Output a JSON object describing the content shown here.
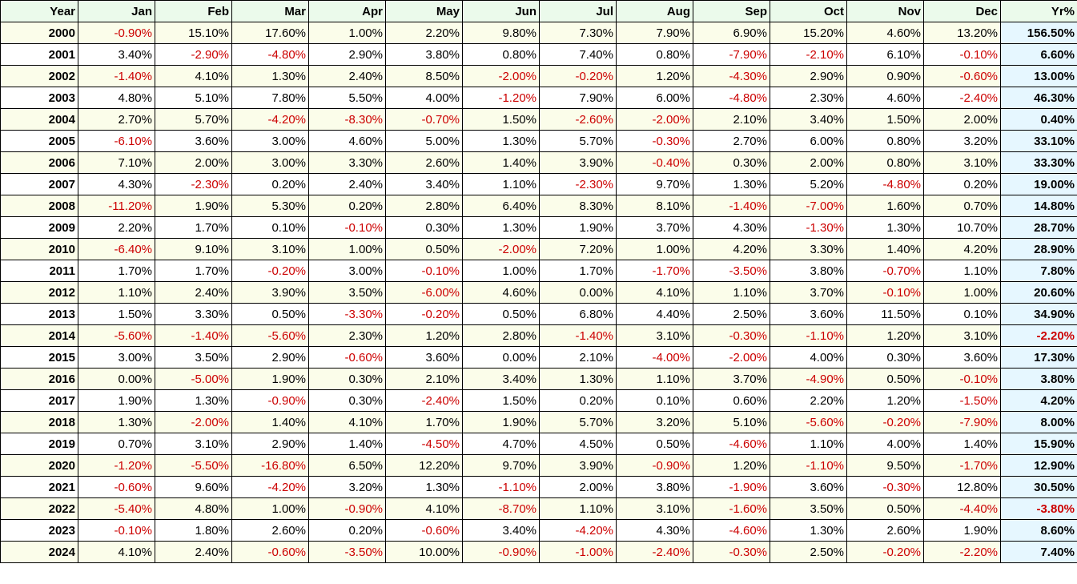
{
  "table": {
    "columns": [
      "Year",
      "Jan",
      "Feb",
      "Mar",
      "Apr",
      "May",
      "Jun",
      "Jul",
      "Aug",
      "Sep",
      "Oct",
      "Nov",
      "Dec",
      "Yr%"
    ],
    "rows": [
      {
        "year": "2000",
        "months": [
          "-0.90%",
          "15.10%",
          "17.60%",
          "1.00%",
          "2.20%",
          "9.80%",
          "7.30%",
          "7.90%",
          "6.90%",
          "15.20%",
          "4.60%",
          "13.20%"
        ],
        "yr": "156.50%"
      },
      {
        "year": "2001",
        "months": [
          "3.40%",
          "-2.90%",
          "-4.80%",
          "2.90%",
          "3.80%",
          "0.80%",
          "7.40%",
          "0.80%",
          "-7.90%",
          "-2.10%",
          "6.10%",
          "-0.10%"
        ],
        "yr": "6.60%"
      },
      {
        "year": "2002",
        "months": [
          "-1.40%",
          "4.10%",
          "1.30%",
          "2.40%",
          "8.50%",
          "-2.00%",
          "-0.20%",
          "1.20%",
          "-4.30%",
          "2.90%",
          "0.90%",
          "-0.60%"
        ],
        "yr": "13.00%"
      },
      {
        "year": "2003",
        "months": [
          "4.80%",
          "5.10%",
          "7.80%",
          "5.50%",
          "4.00%",
          "-1.20%",
          "7.90%",
          "6.00%",
          "-4.80%",
          "2.30%",
          "4.60%",
          "-2.40%"
        ],
        "yr": "46.30%"
      },
      {
        "year": "2004",
        "months": [
          "2.70%",
          "5.70%",
          "-4.20%",
          "-8.30%",
          "-0.70%",
          "1.50%",
          "-2.60%",
          "-2.00%",
          "2.10%",
          "3.40%",
          "1.50%",
          "2.00%"
        ],
        "yr": "0.40%"
      },
      {
        "year": "2005",
        "months": [
          "-6.10%",
          "3.60%",
          "3.00%",
          "4.60%",
          "5.00%",
          "1.30%",
          "5.70%",
          "-0.30%",
          "2.70%",
          "6.00%",
          "0.80%",
          "3.20%"
        ],
        "yr": "33.10%"
      },
      {
        "year": "2006",
        "months": [
          "7.10%",
          "2.00%",
          "3.00%",
          "3.30%",
          "2.60%",
          "1.40%",
          "3.90%",
          "-0.40%",
          "0.30%",
          "2.00%",
          "0.80%",
          "3.10%"
        ],
        "yr": "33.30%"
      },
      {
        "year": "2007",
        "months": [
          "4.30%",
          "-2.30%",
          "0.20%",
          "2.40%",
          "3.40%",
          "1.10%",
          "-2.30%",
          "9.70%",
          "1.30%",
          "5.20%",
          "-4.80%",
          "0.20%"
        ],
        "yr": "19.00%"
      },
      {
        "year": "2008",
        "months": [
          "-11.20%",
          "1.90%",
          "5.30%",
          "0.20%",
          "2.80%",
          "6.40%",
          "8.30%",
          "8.10%",
          "-1.40%",
          "-7.00%",
          "1.60%",
          "0.70%"
        ],
        "yr": "14.80%"
      },
      {
        "year": "2009",
        "months": [
          "2.20%",
          "1.70%",
          "0.10%",
          "-0.10%",
          "0.30%",
          "1.30%",
          "1.90%",
          "3.70%",
          "4.30%",
          "-1.30%",
          "1.30%",
          "10.70%"
        ],
        "yr": "28.70%"
      },
      {
        "year": "2010",
        "months": [
          "-6.40%",
          "9.10%",
          "3.10%",
          "1.00%",
          "0.50%",
          "-2.00%",
          "7.20%",
          "1.00%",
          "4.20%",
          "3.30%",
          "1.40%",
          "4.20%"
        ],
        "yr": "28.90%"
      },
      {
        "year": "2011",
        "months": [
          "1.70%",
          "1.70%",
          "-0.20%",
          "3.00%",
          "-0.10%",
          "1.00%",
          "1.70%",
          "-1.70%",
          "-3.50%",
          "3.80%",
          "-0.70%",
          "1.10%"
        ],
        "yr": "7.80%"
      },
      {
        "year": "2012",
        "months": [
          "1.10%",
          "2.40%",
          "3.90%",
          "3.50%",
          "-6.00%",
          "4.60%",
          "0.00%",
          "4.10%",
          "1.10%",
          "3.70%",
          "-0.10%",
          "1.00%"
        ],
        "yr": "20.60%"
      },
      {
        "year": "2013",
        "months": [
          "1.50%",
          "3.30%",
          "0.50%",
          "-3.30%",
          "-0.20%",
          "0.50%",
          "6.80%",
          "4.40%",
          "2.50%",
          "3.60%",
          "11.50%",
          "0.10%"
        ],
        "yr": "34.90%"
      },
      {
        "year": "2014",
        "months": [
          "-5.60%",
          "-1.40%",
          "-5.60%",
          "2.30%",
          "1.20%",
          "2.80%",
          "-1.40%",
          "3.10%",
          "-0.30%",
          "-1.10%",
          "1.20%",
          "3.10%"
        ],
        "yr": "-2.20%"
      },
      {
        "year": "2015",
        "months": [
          "3.00%",
          "3.50%",
          "2.90%",
          "-0.60%",
          "3.60%",
          "0.00%",
          "2.10%",
          "-4.00%",
          "-2.00%",
          "4.00%",
          "0.30%",
          "3.60%"
        ],
        "yr": "17.30%"
      },
      {
        "year": "2016",
        "months": [
          "0.00%",
          "-5.00%",
          "1.90%",
          "0.30%",
          "2.10%",
          "3.40%",
          "1.30%",
          "1.10%",
          "3.70%",
          "-4.90%",
          "0.50%",
          "-0.10%"
        ],
        "yr": "3.80%"
      },
      {
        "year": "2017",
        "months": [
          "1.90%",
          "1.30%",
          "-0.90%",
          "0.30%",
          "-2.40%",
          "1.50%",
          "0.20%",
          "0.10%",
          "0.60%",
          "2.20%",
          "1.20%",
          "-1.50%"
        ],
        "yr": "4.20%"
      },
      {
        "year": "2018",
        "months": [
          "1.30%",
          "-2.00%",
          "1.40%",
          "4.10%",
          "1.70%",
          "1.90%",
          "5.70%",
          "3.20%",
          "5.10%",
          "-5.60%",
          "-0.20%",
          "-7.90%"
        ],
        "yr": "8.00%"
      },
      {
        "year": "2019",
        "months": [
          "0.70%",
          "3.10%",
          "2.90%",
          "1.40%",
          "-4.50%",
          "4.70%",
          "4.50%",
          "0.50%",
          "-4.60%",
          "1.10%",
          "4.00%",
          "1.40%"
        ],
        "yr": "15.90%"
      },
      {
        "year": "2020",
        "months": [
          "-1.20%",
          "-5.50%",
          "-16.80%",
          "6.50%",
          "12.20%",
          "9.70%",
          "3.90%",
          "-0.90%",
          "1.20%",
          "-1.10%",
          "9.50%",
          "-1.70%"
        ],
        "yr": "12.90%"
      },
      {
        "year": "2021",
        "months": [
          "-0.60%",
          "9.60%",
          "-4.20%",
          "3.20%",
          "1.30%",
          "-1.10%",
          "2.00%",
          "3.80%",
          "-1.90%",
          "3.60%",
          "-0.30%",
          "12.80%"
        ],
        "yr": "30.50%"
      },
      {
        "year": "2022",
        "months": [
          "-5.40%",
          "4.80%",
          "1.00%",
          "-0.90%",
          "4.10%",
          "-8.70%",
          "1.10%",
          "3.10%",
          "-1.60%",
          "3.50%",
          "0.50%",
          "-4.40%"
        ],
        "yr": "-3.80%"
      },
      {
        "year": "2023",
        "months": [
          "-0.10%",
          "1.80%",
          "2.60%",
          "0.20%",
          "-0.60%",
          "3.40%",
          "-4.20%",
          "4.30%",
          "-4.60%",
          "1.30%",
          "2.60%",
          "1.90%"
        ],
        "yr": "8.60%"
      },
      {
        "year": "2024",
        "months": [
          "4.10%",
          "2.40%",
          "-0.60%",
          "-3.50%",
          "10.00%",
          "-0.90%",
          "-1.00%",
          "-2.40%",
          "-0.30%",
          "2.50%",
          "-0.20%",
          "-2.20%"
        ],
        "yr": "7.40%"
      }
    ]
  },
  "colors": {
    "negative": "#cc0000",
    "header_bg": "#ebfaeb",
    "alt_row_bg": "#fbfdea",
    "yr_col_bg": "#e6f7ff",
    "grid_line": "#000000"
  }
}
